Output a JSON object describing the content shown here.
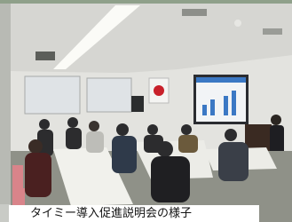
{
  "caption": "タイミー導入促進説明会の様子"
}
